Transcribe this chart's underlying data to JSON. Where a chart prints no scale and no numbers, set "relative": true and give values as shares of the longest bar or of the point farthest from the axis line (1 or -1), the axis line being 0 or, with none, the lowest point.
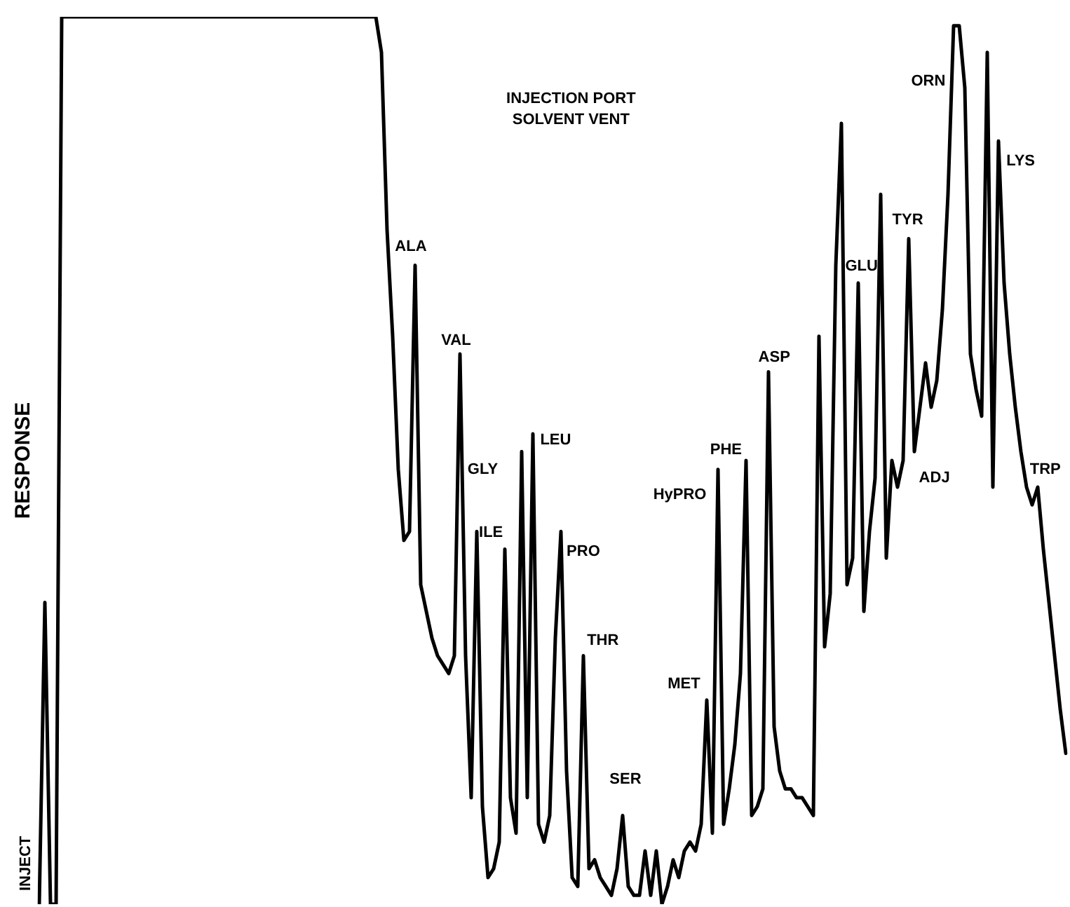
{
  "chart_data": {
    "type": "line",
    "relative": true,
    "ylabel": "RESPONSE",
    "color": "#000000",
    "marker": "none",
    "line_style": "solid",
    "grid": false,
    "legend": false,
    "tick_labels": false,
    "categories": [
      null,
      null,
      null,
      null,
      null,
      null,
      null,
      null,
      null,
      null,
      null,
      null,
      null,
      null,
      null,
      null,
      null,
      null,
      null,
      null,
      null,
      null,
      null,
      null,
      null,
      null,
      null,
      null,
      null,
      null,
      null,
      null,
      null,
      null,
      null,
      null,
      null,
      null,
      null,
      null,
      null,
      null,
      null,
      null,
      null,
      null,
      null,
      null,
      null,
      null,
      null,
      null,
      null,
      null,
      null,
      null,
      null,
      null,
      null,
      null,
      null,
      null,
      null,
      null,
      null,
      null,
      null,
      null,
      null,
      null,
      null,
      null,
      null,
      null,
      null,
      null,
      null,
      null,
      null,
      null,
      null,
      null,
      null,
      null,
      null,
      null,
      null,
      null,
      null,
      null,
      null,
      null,
      null,
      null,
      null,
      null,
      null,
      null,
      null,
      null,
      null,
      null,
      null,
      null,
      null,
      null,
      null,
      null,
      null,
      null,
      null,
      null,
      null,
      null,
      null,
      null,
      null,
      null,
      null,
      null,
      null,
      null,
      null,
      null,
      null,
      null,
      null,
      null,
      null,
      null,
      null,
      null,
      null,
      null,
      null,
      null,
      null,
      null,
      null,
      null,
      null,
      null,
      null,
      null,
      null,
      null,
      null,
      null,
      null,
      null,
      null,
      null,
      null,
      null,
      null,
      null,
      null,
      null,
      null,
      null,
      null,
      null,
      null,
      null,
      null,
      null,
      null,
      null,
      null,
      null,
      null,
      null,
      null,
      null,
      null,
      null,
      null,
      null,
      null,
      null,
      null,
      null,
      null,
      null
    ],
    "values": [
      0,
      0.34,
      0,
      0,
      1,
      1,
      1,
      1,
      1,
      1,
      1,
      1,
      1,
      1,
      1,
      1,
      1,
      1,
      1,
      1,
      1,
      1,
      1,
      1,
      1,
      1,
      1,
      1,
      1,
      1,
      1,
      1,
      1,
      1,
      1,
      1,
      1,
      1,
      1,
      1,
      1,
      1,
      1,
      1,
      1,
      1,
      1,
      1,
      1,
      1,
      1,
      1,
      1,
      1,
      1,
      1,
      1,
      1,
      1,
      1,
      1,
      0.96,
      0.76,
      0.64,
      0.49,
      0.41,
      0.42,
      0.72,
      0.36,
      0.33,
      0.3,
      0.28,
      0.27,
      0.26,
      0.28,
      0.62,
      0.28,
      0.12,
      0.42,
      0.11,
      0.03,
      0.04,
      0.07,
      0.4,
      0.12,
      0.08,
      0.51,
      0.12,
      0.53,
      0.09,
      0.07,
      0.1,
      0.3,
      0.42,
      0.15,
      0.03,
      0.02,
      0.28,
      0.04,
      0.05,
      0.03,
      0.02,
      0.01,
      0.04,
      0.1,
      0.02,
      0.01,
      0.01,
      0.06,
      0.01,
      0.06,
      0,
      0.02,
      0.05,
      0.03,
      0.06,
      0.07,
      0.06,
      0.09,
      0.23,
      0.08,
      0.49,
      0.09,
      0.13,
      0.18,
      0.26,
      0.5,
      0.1,
      0.11,
      0.13,
      0.6,
      0.2,
      0.15,
      0.13,
      0.13,
      0.12,
      0.12,
      0.11,
      0.1,
      0.64,
      0.29,
      0.35,
      0.72,
      0.88,
      0.36,
      0.39,
      0.7,
      0.33,
      0.42,
      0.48,
      0.8,
      0.39,
      0.5,
      0.47,
      0.5,
      0.75,
      0.51,
      0.56,
      0.61,
      0.56,
      0.59,
      0.67,
      0.8,
      0.99,
      0.99,
      0.92,
      0.62,
      0.58,
      0.55,
      0.96,
      0.47,
      0.86,
      0.7,
      0.62,
      0.56,
      0.51,
      0.47,
      0.45,
      0.47,
      0.4,
      0.34,
      0.28,
      0.22,
      0.17
    ],
    "annotations": [
      "INJECTION PORT\nSOLVENT VENT",
      "INJECT",
      "ALA",
      "VAL",
      "GLY",
      "ILE",
      "LEU",
      "PRO",
      "THR",
      "SER",
      "MET",
      "HyPRO",
      "PHE",
      "ASP",
      "GLU",
      "TYR",
      "ORN",
      "ADJ",
      "LYS",
      "TRP"
    ]
  }
}
